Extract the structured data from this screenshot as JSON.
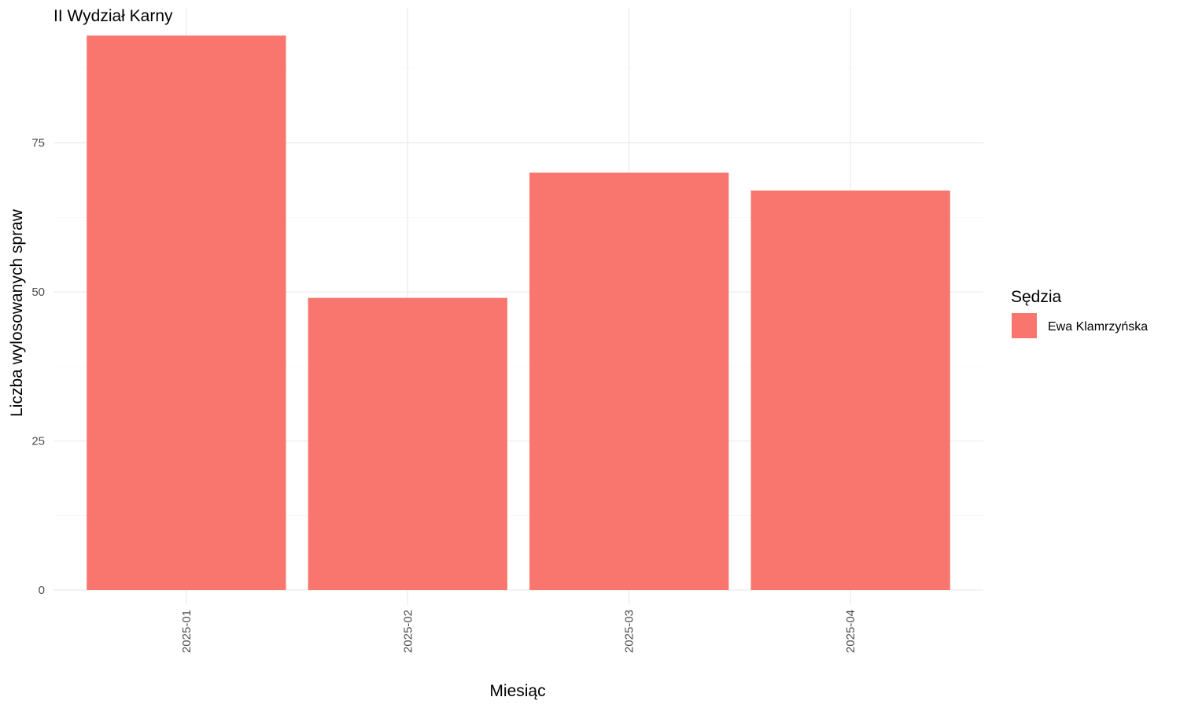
{
  "chart_data": {
    "type": "bar",
    "title": "II Wydział Karny",
    "xlabel": "Miesiąc",
    "ylabel": "Liczba wylosowanych spraw",
    "categories": [
      "2025-01",
      "2025-02",
      "2025-03",
      "2025-04"
    ],
    "series": [
      {
        "name": "Ewa Klamrzyńska",
        "values": [
          93,
          49,
          70,
          67
        ],
        "color": "#F8766D"
      }
    ],
    "ylim": [
      0,
      97.65
    ],
    "yticks": [
      0,
      25,
      50,
      75
    ],
    "grid": true,
    "legend": {
      "title": "Sędzia",
      "placement": "right"
    }
  }
}
